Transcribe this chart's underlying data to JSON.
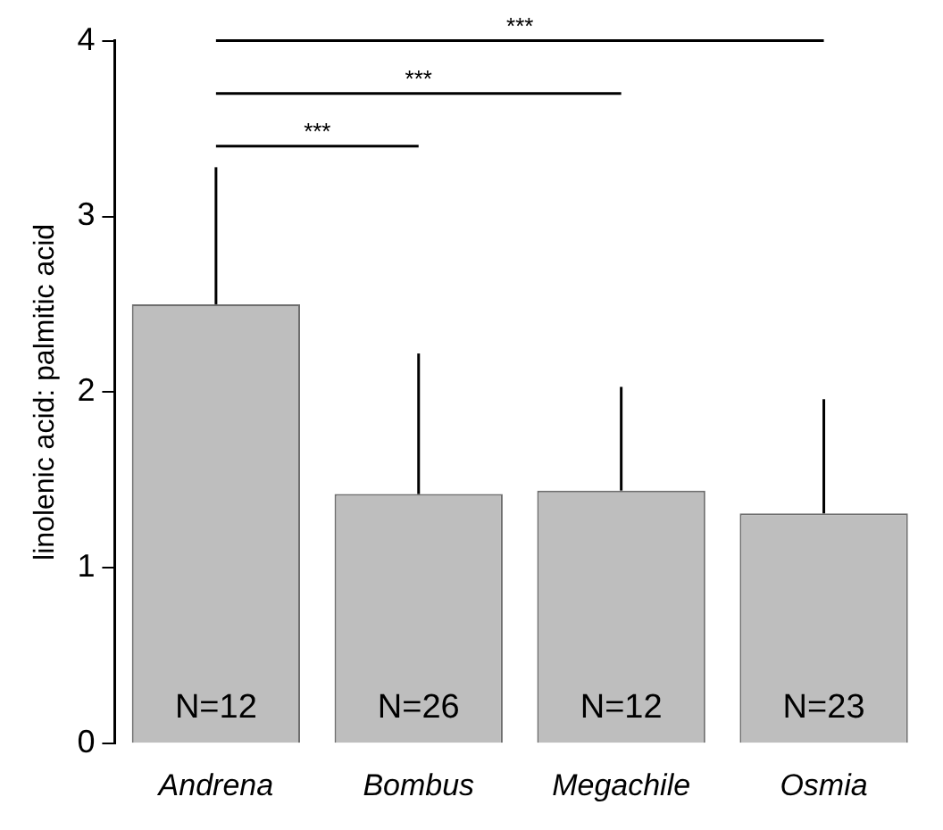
{
  "chart_data": {
    "type": "bar",
    "ylabel": "linolenic acid: palmitic acid",
    "categories": [
      "Andrena",
      "Bombus",
      "Megachile",
      "Osmia"
    ],
    "values": [
      2.5,
      1.42,
      1.44,
      1.31
    ],
    "color": "#bebebe",
    "errors": [
      [
        2.5,
        3.28
      ],
      [
        1.42,
        2.22
      ],
      [
        1.44,
        2.03
      ],
      [
        1.31,
        1.96
      ]
    ],
    "ylim": [
      0,
      4
    ],
    "yticks": [
      0,
      1,
      2,
      3,
      4
    ],
    "grid": false,
    "legend": false,
    "annotations": [
      "N=12",
      "N=26",
      "N=12",
      "N=23",
      "***",
      "***",
      "***"
    ]
  }
}
